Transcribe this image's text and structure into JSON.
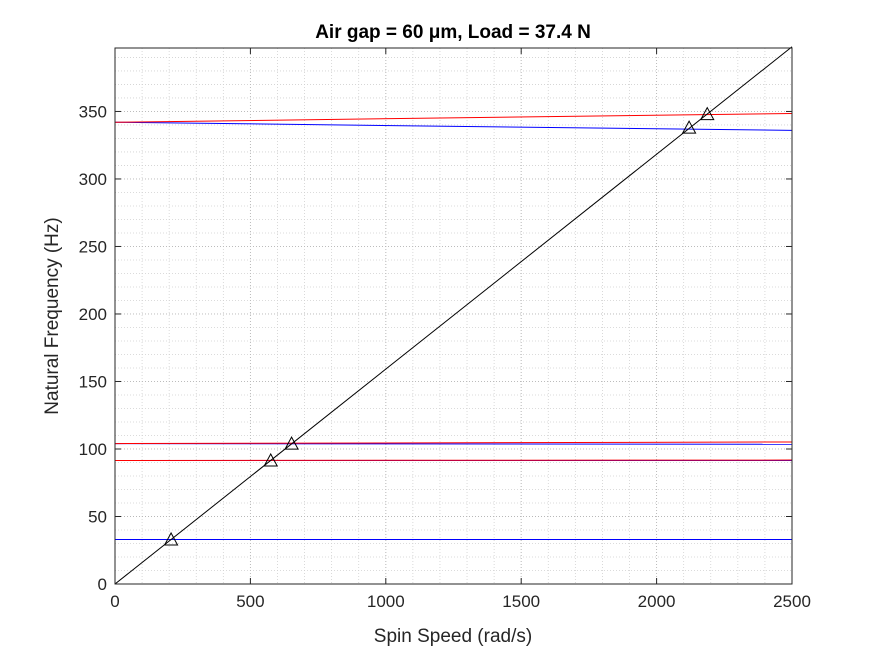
{
  "chart_data": {
    "type": "line",
    "title": "Air gap = 60 μm, Load = 37.4 N",
    "xlabel": "Spin Speed (rad/s)",
    "ylabel": "Natural Frequency (Hz)",
    "xlim": [
      0,
      2500
    ],
    "ylim": [
      0,
      397
    ],
    "xticks": [
      0,
      500,
      1000,
      1500,
      2000,
      2500
    ],
    "yticks": [
      0,
      50,
      100,
      150,
      200,
      250,
      300,
      350
    ],
    "grid": "major and minor, dotted",
    "series": [
      {
        "color": "#0000ff",
        "x": [
          0,
          2500
        ],
        "y": [
          33,
          33
        ]
      },
      {
        "color": "#0000ff",
        "x": [
          0,
          2500
        ],
        "y": [
          91.5,
          91.5
        ]
      },
      {
        "color": "#ff0000",
        "x": [
          0,
          2500
        ],
        "y": [
          91.5,
          91.8
        ]
      },
      {
        "color": "#0000ff",
        "x": [
          0,
          2500
        ],
        "y": [
          104,
          103.5
        ]
      },
      {
        "color": "#ff0000",
        "x": [
          0,
          2500
        ],
        "y": [
          104,
          105.2
        ]
      },
      {
        "color": "#0000ff",
        "x": [
          0,
          2500
        ],
        "y": [
          342,
          336
        ]
      },
      {
        "color": "#ff0000",
        "x": [
          0,
          2500
        ],
        "y": [
          342,
          348.5
        ]
      },
      {
        "color": "#000000",
        "x": [
          0,
          2500
        ],
        "y": [
          0,
          397.9
        ]
      }
    ],
    "markers": {
      "shape": "triangle",
      "color": "#000000",
      "x": [
        207,
        575,
        652,
        2120,
        2187
      ],
      "y": [
        33,
        91.5,
        104,
        338,
        348
      ]
    }
  }
}
